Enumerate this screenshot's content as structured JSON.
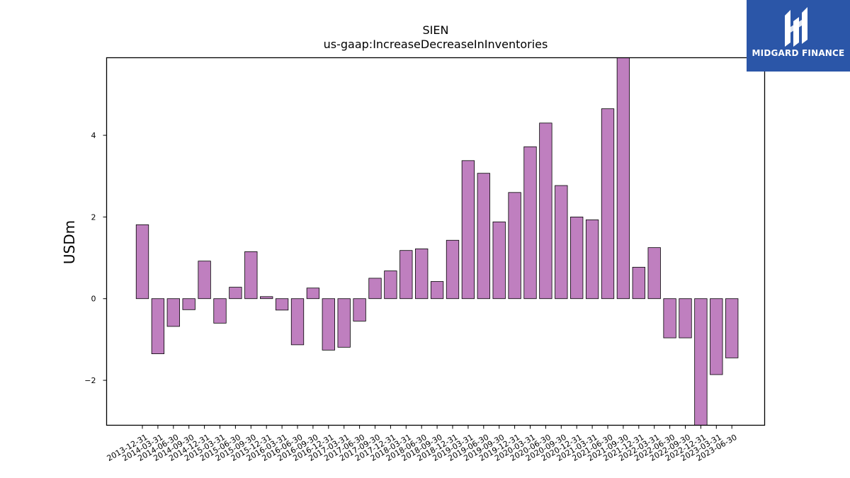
{
  "chart_data": {
    "type": "bar",
    "title": "SIEN",
    "subtitle": "us-gaap:IncreaseDecreaseInInventories",
    "ylabel": "USDm",
    "xlabel": "",
    "ylim": [
      -3.1,
      5.9
    ],
    "yticks": [
      -2,
      0,
      2,
      4
    ],
    "bar_color": "#bf7fbf",
    "grid": false,
    "categories": [
      "2013-12-31",
      "2014-03-31",
      "2014-06-30",
      "2014-09-30",
      "2014-12-31",
      "2015-03-31",
      "2015-06-30",
      "2015-09-30",
      "2015-12-31",
      "2016-03-31",
      "2016-06-30",
      "2016-09-30",
      "2016-12-31",
      "2017-03-31",
      "2017-06-30",
      "2017-09-30",
      "2017-12-31",
      "2018-03-31",
      "2018-06-30",
      "2018-09-30",
      "2018-12-31",
      "2019-03-31",
      "2019-06-30",
      "2019-09-30",
      "2019-12-31",
      "2020-03-31",
      "2020-06-30",
      "2020-09-30",
      "2020-12-31",
      "2021-03-31",
      "2021-06-30",
      "2021-09-30",
      "2021-12-31",
      "2022-03-31",
      "2022-06-30",
      "2022-09-30",
      "2022-12-31",
      "2023-03-31",
      "2023-06-30"
    ],
    "values": [
      1.81,
      -1.35,
      -0.68,
      -0.27,
      0.92,
      -0.6,
      0.28,
      1.15,
      0.05,
      -0.28,
      -1.13,
      0.26,
      -1.26,
      -1.19,
      -0.55,
      0.5,
      0.68,
      1.18,
      1.22,
      0.42,
      1.43,
      3.38,
      3.07,
      1.88,
      2.6,
      3.72,
      4.3,
      2.77,
      2.0,
      1.93,
      4.65,
      5.9,
      0.77,
      1.25,
      -0.96,
      -0.96,
      -3.1,
      -1.86,
      -1.45
    ]
  },
  "logo": {
    "text": "MIDGARD FINANCE",
    "background": "#2b56a8"
  }
}
